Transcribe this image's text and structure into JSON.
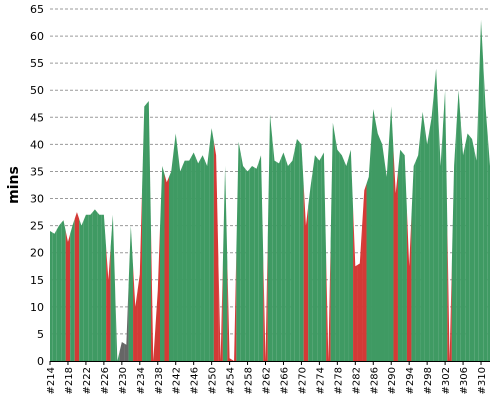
{
  "chart_data": {
    "type": "area",
    "ylabel": "mins",
    "xlabel": "",
    "ylim": [
      0,
      65
    ],
    "yticks": [
      0,
      5,
      10,
      15,
      20,
      25,
      30,
      35,
      40,
      45,
      50,
      55,
      60,
      65
    ],
    "grid": "horizontal dashed",
    "x_tick_labels": [
      "#214",
      "#218",
      "#222",
      "#226",
      "#230",
      "#234",
      "#238",
      "#242",
      "#246",
      "#250",
      "#254",
      "#258",
      "#262",
      "#266",
      "#270",
      "#274",
      "#278",
      "#282",
      "#286",
      "#290",
      "#294",
      "#298",
      "#302",
      "#306",
      "#310"
    ],
    "x": [
      "#214",
      "#215",
      "#216",
      "#217",
      "#218",
      "#219",
      "#220",
      "#221",
      "#222",
      "#223",
      "#224",
      "#225",
      "#226",
      "#227",
      "#228",
      "#229",
      "#230",
      "#231",
      "#232",
      "#233",
      "#234",
      "#235",
      "#236",
      "#237",
      "#238",
      "#239",
      "#240",
      "#241",
      "#242",
      "#243",
      "#244",
      "#245",
      "#246",
      "#247",
      "#248",
      "#249",
      "#250",
      "#251",
      "#252",
      "#253",
      "#254",
      "#255",
      "#256",
      "#257",
      "#258",
      "#259",
      "#260",
      "#261",
      "#262",
      "#263",
      "#264",
      "#265",
      "#266",
      "#267",
      "#268",
      "#269",
      "#270",
      "#271",
      "#272",
      "#273",
      "#274",
      "#275",
      "#276",
      "#277",
      "#278",
      "#279",
      "#280",
      "#281",
      "#282",
      "#283",
      "#284",
      "#285",
      "#286",
      "#287",
      "#288",
      "#289",
      "#290",
      "#291",
      "#292",
      "#293",
      "#294",
      "#295",
      "#296",
      "#297",
      "#298",
      "#299",
      "#300",
      "#301",
      "#302",
      "#303",
      "#304",
      "#305",
      "#306",
      "#307",
      "#308",
      "#309",
      "#310",
      "#311",
      "#312"
    ],
    "values": [
      24,
      23.5,
      25,
      26,
      22,
      25,
      27.5,
      25,
      27,
      27,
      28,
      27,
      27,
      15,
      27,
      0,
      3.5,
      3,
      25,
      10,
      16,
      47,
      48,
      0,
      13,
      36,
      33,
      35,
      42,
      35,
      37,
      37,
      38.5,
      36.5,
      38,
      36,
      43,
      38,
      0,
      36,
      0.5,
      0,
      40.5,
      36,
      35,
      36,
      35.5,
      38,
      0,
      45.5,
      37,
      36.5,
      38.5,
      36,
      37,
      41,
      40,
      25,
      32,
      38,
      37,
      38.5,
      0,
      44,
      39,
      38,
      36,
      39,
      17.5,
      18,
      31.5,
      34,
      46.5,
      42,
      40,
      34,
      47,
      31,
      39,
      38,
      17.5,
      36,
      38,
      46,
      40,
      45,
      54,
      36,
      50,
      0,
      36,
      50,
      38,
      42,
      41,
      37,
      63,
      47,
      36
    ],
    "status": [
      "pass",
      "pass",
      "pass",
      "pass",
      "fail",
      "pass",
      "fail",
      "pass",
      "pass",
      "pass",
      "pass",
      "pass",
      "pass",
      "fail",
      "pass",
      "pass",
      "aborted",
      "aborted",
      "pass",
      "fail",
      "fail",
      "pass",
      "pass",
      "fail",
      "fail",
      "pass",
      "fail",
      "pass",
      "pass",
      "pass",
      "pass",
      "pass",
      "pass",
      "pass",
      "pass",
      "pass",
      "pass",
      "fail",
      "fail",
      "pass",
      "fail",
      "fail",
      "pass",
      "pass",
      "pass",
      "pass",
      "pass",
      "pass",
      "fail",
      "pass",
      "pass",
      "pass",
      "pass",
      "pass",
      "pass",
      "pass",
      "pass",
      "fail",
      "pass",
      "pass",
      "pass",
      "pass",
      "fail",
      "pass",
      "pass",
      "pass",
      "pass",
      "pass",
      "fail",
      "fail",
      "fail",
      "pass",
      "pass",
      "pass",
      "pass",
      "pass",
      "pass",
      "fail",
      "pass",
      "pass",
      "fail",
      "pass",
      "pass",
      "pass",
      "pass",
      "pass",
      "pass",
      "pass",
      "pass",
      "fail",
      "pass",
      "pass",
      "pass",
      "pass",
      "pass",
      "pass",
      "pass",
      "pass",
      "pass"
    ],
    "colors": {
      "pass": "#3f9a63",
      "fail": "#d33a36",
      "aborted": "#666666"
    }
  }
}
